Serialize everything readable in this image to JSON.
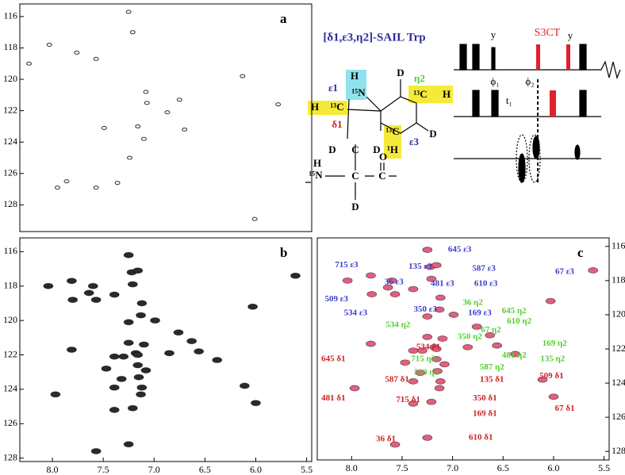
{
  "chart_data": [
    {
      "type": "scatter",
      "label": "a",
      "color": "#333333",
      "x": [
        7.25,
        8.03,
        7.21,
        7.57,
        7.08,
        6.75,
        7.07,
        6.87,
        7.49,
        7.16,
        7.1,
        7.24,
        7.86,
        7.57,
        7.95,
        6.01,
        5.78,
        8.23,
        7.76,
        6.13,
        6.7,
        7.36
      ],
      "y": [
        115.7,
        117.8,
        117.0,
        118.7,
        120.8,
        121.3,
        121.5,
        122.1,
        123.1,
        123.0,
        123.8,
        125.0,
        126.5,
        126.9,
        126.9,
        128.9,
        121.6,
        119.0,
        118.3,
        119.8,
        123.2,
        126.6
      ],
      "xlim": [
        8.32,
        5.45
      ],
      "ylim": [
        129.7,
        115.2
      ],
      "yticks": [
        116,
        118,
        120,
        122,
        124,
        126,
        128
      ]
    },
    {
      "type": "scatter",
      "label": "b",
      "color": "#2a2a2a",
      "x": [
        7.25,
        7.22,
        7.16,
        7.81,
        8.04,
        7.6,
        7.64,
        7.21,
        7.39,
        7.8,
        7.57,
        7.12,
        5.61,
        6.03,
        7.13,
        7.25,
        6.99,
        7.25,
        6.76,
        7.1,
        7.18,
        6.85,
        6.56,
        6.63,
        6.38,
        7.81,
        7.39,
        7.3,
        7.16,
        7.47,
        7.16,
        7.08,
        7.97,
        7.39,
        7.32,
        7.15,
        7.12,
        7.13,
        6.11,
        7.39,
        7.21,
        7.57,
        6.0,
        7.25
      ],
      "y": [
        116.2,
        117.2,
        117.1,
        117.7,
        118.0,
        118.0,
        118.4,
        117.9,
        118.5,
        118.8,
        118.8,
        119.0,
        117.4,
        119.2,
        119.7,
        120.1,
        120.0,
        121.3,
        120.7,
        121.4,
        121.9,
        121.9,
        121.8,
        121.2,
        122.3,
        121.7,
        122.1,
        122.1,
        122.0,
        122.8,
        122.6,
        122.9,
        124.3,
        123.9,
        123.4,
        123.3,
        123.9,
        124.3,
        123.8,
        125.2,
        125.1,
        127.6,
        124.8,
        127.2
      ],
      "xlim": [
        8.32,
        5.45
      ],
      "ylim": [
        128.2,
        115.2
      ],
      "yticks": [
        116,
        118,
        120,
        122,
        124,
        126,
        128
      ],
      "xticks": [
        {
          "value": 8,
          "label": "8.0"
        },
        {
          "value": 7.5,
          "label": "7.5"
        },
        {
          "value": 7,
          "label": "7.0"
        },
        {
          "value": 6.5,
          "label": "6.5"
        },
        {
          "value": 6,
          "label": "6.0"
        },
        {
          "value": 5.5,
          "label": "5.5"
        }
      ]
    },
    {
      "type": "scatter",
      "label": "c",
      "color": "#e0607e",
      "x": [
        7.25,
        7.22,
        7.16,
        7.81,
        8.04,
        7.6,
        7.64,
        7.21,
        7.39,
        7.8,
        7.57,
        7.12,
        5.61,
        6.03,
        7.13,
        7.25,
        6.99,
        7.25,
        6.76,
        7.1,
        7.18,
        6.85,
        6.56,
        6.63,
        6.38,
        7.81,
        7.39,
        7.3,
        7.16,
        7.47,
        7.16,
        7.08,
        7.97,
        7.39,
        7.32,
        7.15,
        7.12,
        7.13,
        6.11,
        7.39,
        7.21,
        7.57,
        6.0,
        7.25
      ],
      "y": [
        116.2,
        117.2,
        117.1,
        117.7,
        118.0,
        118.0,
        118.4,
        117.9,
        118.5,
        118.8,
        118.8,
        119.0,
        117.4,
        119.2,
        119.7,
        120.1,
        120.0,
        121.3,
        120.7,
        121.4,
        121.9,
        121.9,
        121.8,
        121.2,
        122.3,
        121.7,
        122.1,
        122.1,
        122.0,
        122.8,
        122.6,
        122.9,
        124.3,
        123.9,
        123.4,
        123.3,
        123.9,
        124.3,
        123.8,
        125.2,
        125.1,
        127.6,
        124.8,
        127.2
      ],
      "xlim": [
        8.34,
        5.45
      ],
      "ylim": [
        128.5,
        115.5
      ],
      "yticks": [
        116,
        118,
        120,
        122,
        124,
        126,
        128
      ],
      "xticks": [
        {
          "value": 8,
          "label": "8.0"
        },
        {
          "value": 7.5,
          "label": "7.5"
        },
        {
          "value": 7,
          "label": "7.0"
        },
        {
          "value": 6.5,
          "label": "6.5"
        },
        {
          "value": 6,
          "label": "6.0"
        },
        {
          "value": 5.5,
          "label": "5.5"
        }
      ],
      "annotations": [
        {
          "text": "645 ε3",
          "x": 6.93,
          "y": 116.2,
          "color": "#3b3bcc"
        },
        {
          "text": "715 ε3",
          "x": 8.05,
          "y": 117.1,
          "color": "#3b3bcc"
        },
        {
          "text": "135 ε3",
          "x": 7.32,
          "y": 117.2,
          "color": "#3b3bcc"
        },
        {
          "text": "587 ε3",
          "x": 6.69,
          "y": 117.3,
          "color": "#3b3bcc"
        },
        {
          "text": "36 ε3",
          "x": 7.58,
          "y": 118.1,
          "color": "#3b3bcc"
        },
        {
          "text": "481 ε3",
          "x": 7.1,
          "y": 118.2,
          "color": "#3b3bcc"
        },
        {
          "text": "610 ε3",
          "x": 6.67,
          "y": 118.2,
          "color": "#3b3bcc"
        },
        {
          "text": "67 ε3",
          "x": 5.89,
          "y": 117.5,
          "color": "#3b3bcc"
        },
        {
          "text": "509 ε3",
          "x": 8.15,
          "y": 119.1,
          "color": "#3b3bcc"
        },
        {
          "text": "350 ε3",
          "x": 7.27,
          "y": 119.7,
          "color": "#3b3bcc"
        },
        {
          "text": "169 ε3",
          "x": 6.73,
          "y": 119.9,
          "color": "#3b3bcc"
        },
        {
          "text": "534 ε3",
          "x": 7.96,
          "y": 119.9,
          "color": "#3b3bcc"
        },
        {
          "text": "36 η2",
          "x": 6.8,
          "y": 119.3,
          "color": "#55cc33"
        },
        {
          "text": "645 η2",
          "x": 6.39,
          "y": 119.8,
          "color": "#55cc33"
        },
        {
          "text": "610 η2",
          "x": 6.34,
          "y": 120.4,
          "color": "#55cc33"
        },
        {
          "text": "534 η2",
          "x": 7.54,
          "y": 120.6,
          "color": "#55cc33"
        },
        {
          "text": "67 η2",
          "x": 6.62,
          "y": 120.9,
          "color": "#55cc33"
        },
        {
          "text": "350 η2",
          "x": 6.83,
          "y": 121.3,
          "color": "#55cc33"
        },
        {
          "text": "169 η2",
          "x": 5.99,
          "y": 121.7,
          "color": "#55cc33"
        },
        {
          "text": "481 η2",
          "x": 6.39,
          "y": 122.4,
          "color": "#55cc33"
        },
        {
          "text": "135 η2",
          "x": 6.01,
          "y": 122.6,
          "color": "#55cc33"
        },
        {
          "text": "715 η2",
          "x": 7.29,
          "y": 122.6,
          "color": "#55cc33"
        },
        {
          "text": "587 η2",
          "x": 6.61,
          "y": 123.1,
          "color": "#55cc33"
        },
        {
          "text": "509 η2",
          "x": 7.26,
          "y": 123.4,
          "color": "#55cc33"
        },
        {
          "text": "534 δ1",
          "x": 7.24,
          "y": 121.9,
          "color": "#cc2222"
        },
        {
          "text": "645 δ1",
          "x": 8.18,
          "y": 122.6,
          "color": "#cc2222"
        },
        {
          "text": "587 δ1",
          "x": 7.55,
          "y": 123.8,
          "color": "#cc2222"
        },
        {
          "text": "135 δ1",
          "x": 6.61,
          "y": 123.8,
          "color": "#cc2222"
        },
        {
          "text": "509 δ1",
          "x": 6.02,
          "y": 123.6,
          "color": "#cc2222"
        },
        {
          "text": "481 δ1",
          "x": 8.18,
          "y": 124.9,
          "color": "#cc2222"
        },
        {
          "text": "715 δ1",
          "x": 7.44,
          "y": 125.0,
          "color": "#cc2222"
        },
        {
          "text": "350 δ1",
          "x": 6.68,
          "y": 124.9,
          "color": "#cc2222"
        },
        {
          "text": "169 δ1",
          "x": 6.68,
          "y": 125.8,
          "color": "#cc2222"
        },
        {
          "text": "67 δ1",
          "x": 5.89,
          "y": 125.5,
          "color": "#cc2222"
        },
        {
          "text": "36 δ1",
          "x": 7.66,
          "y": 127.3,
          "color": "#cc2222"
        },
        {
          "text": "610 δ1",
          "x": 6.72,
          "y": 127.2,
          "color": "#cc2222"
        }
      ]
    }
  ],
  "structure": {
    "title": "[δ1,ε3,η2]-SAIL Trp",
    "labels": [
      "H",
      "¹⁵N",
      "ε1",
      "H",
      "¹³C",
      "δ1",
      "D",
      "η2",
      "¹³C",
      "H",
      "D",
      "¹³C",
      "¹H",
      "ε3",
      "D",
      "C",
      "D",
      "H",
      "¹⁵N",
      "C",
      "C",
      "O",
      "D"
    ]
  },
  "pulse": {
    "labels": [
      "y",
      "S3CT",
      "y",
      "ϕ₁",
      "ϕ₂",
      "t₁"
    ]
  }
}
